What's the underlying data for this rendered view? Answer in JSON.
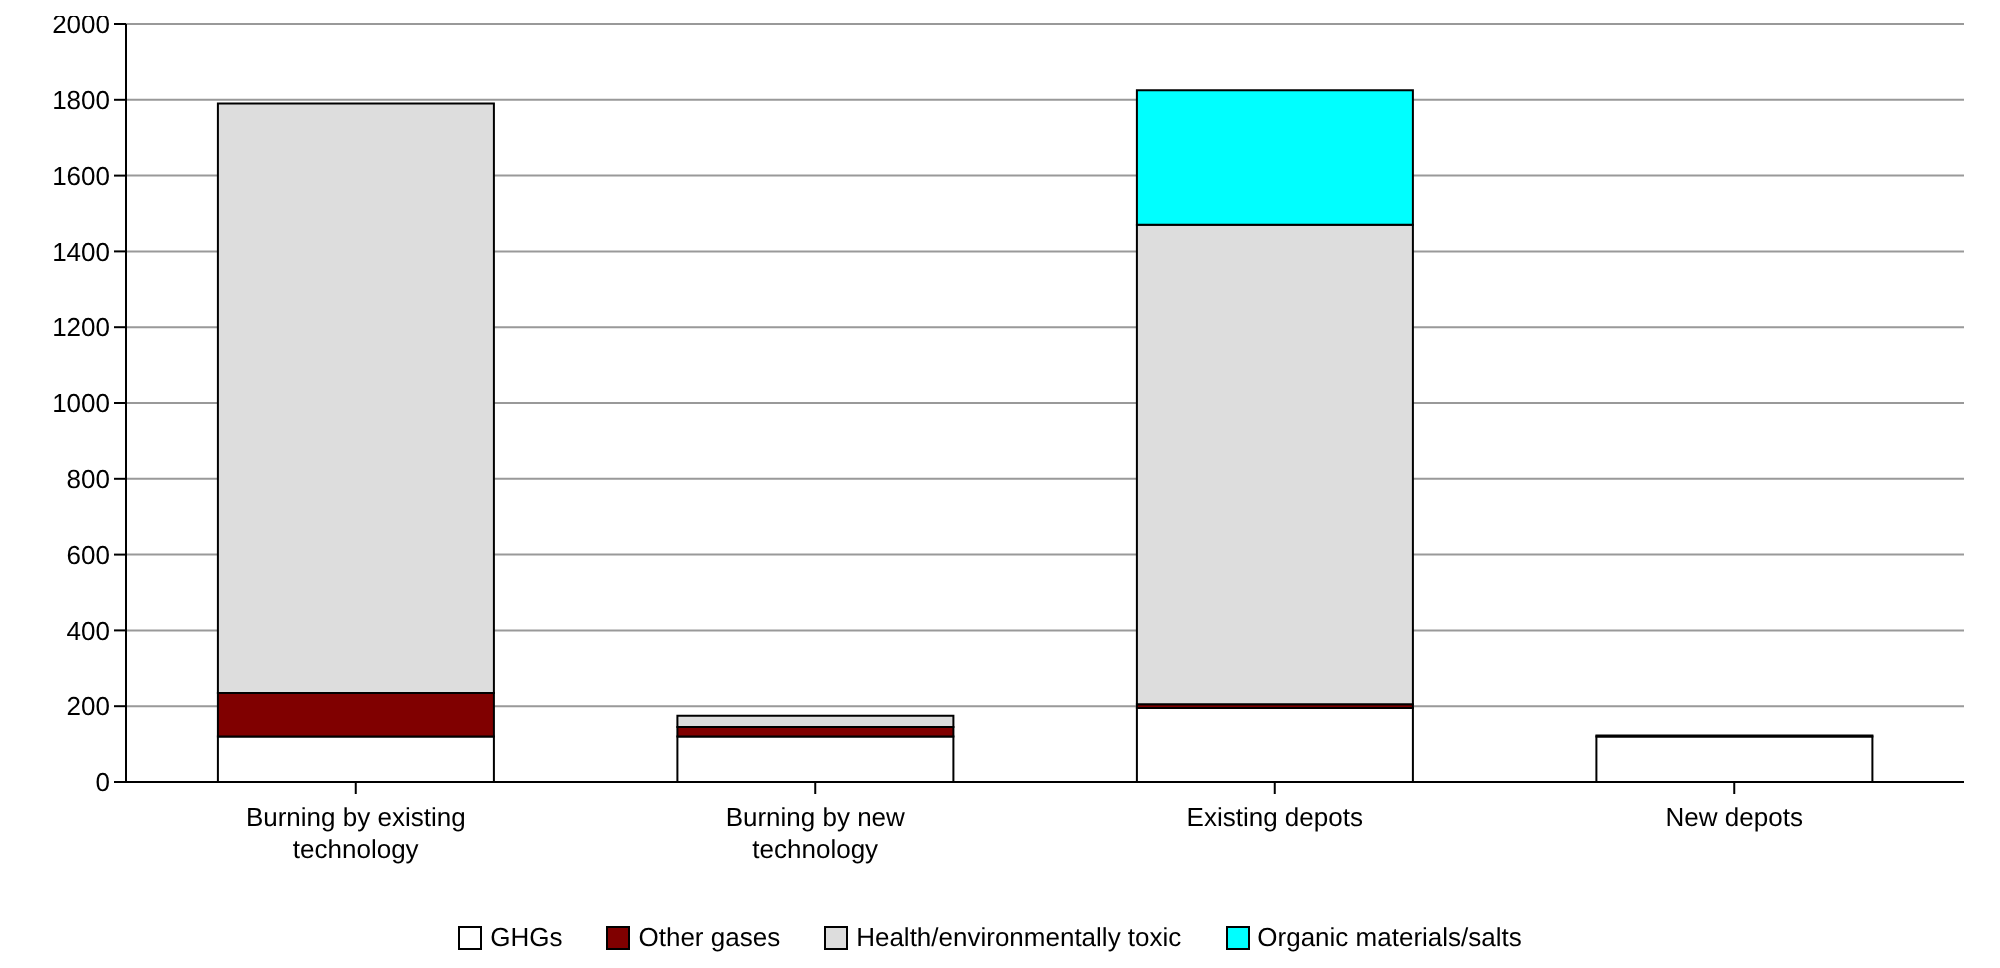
{
  "chart_data": {
    "type": "bar",
    "stacked": true,
    "categories": [
      "Burning by existing technology",
      "Burning by new technology",
      "Existing depots",
      "New depots"
    ],
    "series": [
      {
        "name": "GHGs",
        "color": "#ffffff",
        "values": [
          120,
          120,
          195,
          120
        ]
      },
      {
        "name": "Other gases",
        "color": "#800000",
        "values": [
          115,
          25,
          10,
          3
        ]
      },
      {
        "name": "Health/environmentally toxic",
        "color": "#dddddd",
        "values": [
          1555,
          30,
          1265,
          0
        ]
      },
      {
        "name": "Organic materials/salts",
        "color": "#00ffff",
        "values": [
          0,
          0,
          355,
          0
        ]
      }
    ],
    "ylim": [
      0,
      2000
    ],
    "yticks": [
      0,
      200,
      400,
      600,
      800,
      1000,
      1200,
      1400,
      1600,
      1800,
      2000
    ],
    "grid": "y",
    "legend": "bottom"
  }
}
